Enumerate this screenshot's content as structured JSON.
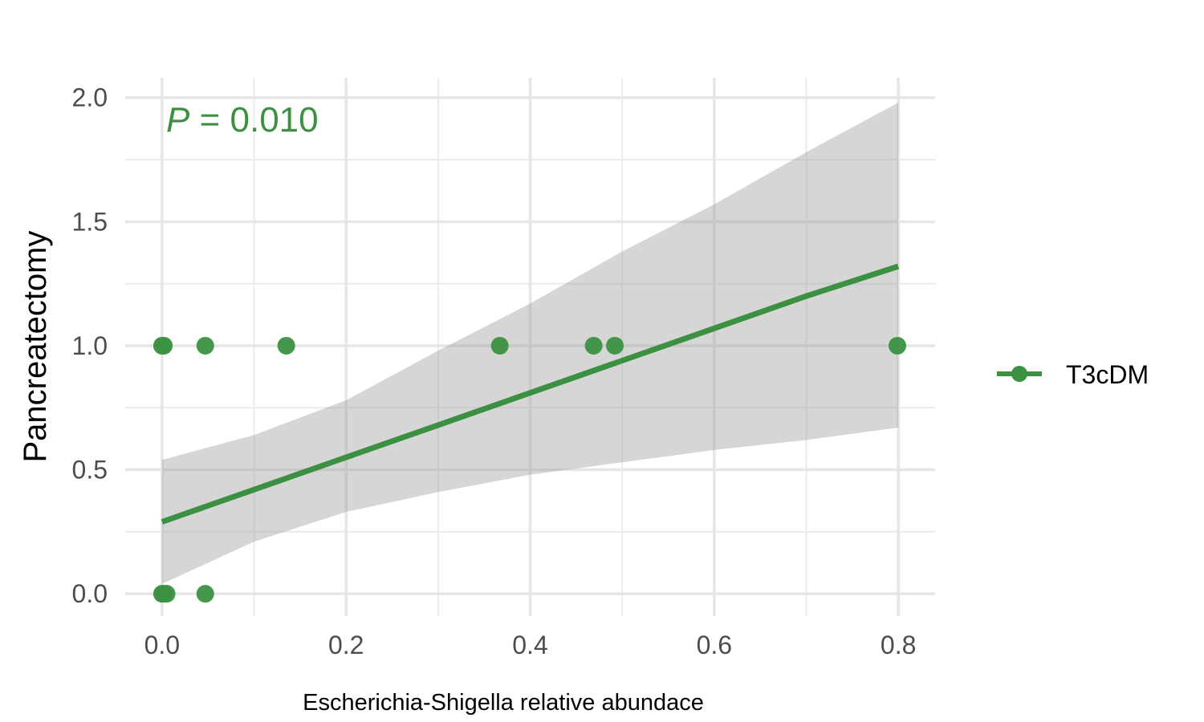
{
  "chart_data": {
    "type": "scatter",
    "title": "",
    "xlabel": "Escherichia-Shigella relative abundace",
    "ylabel": "Pancreatectomy",
    "xlim": [
      -0.04,
      0.84
    ],
    "ylim": [
      -0.09,
      2.08
    ],
    "x_ticks": [
      0.0,
      0.2,
      0.4,
      0.6,
      0.8
    ],
    "x_tick_labels": [
      "0.0",
      "0.2",
      "0.4",
      "0.6",
      "0.8"
    ],
    "y_ticks": [
      0.0,
      0.5,
      1.0,
      1.5,
      2.0
    ],
    "y_tick_labels": [
      "0.0",
      "0.5",
      "1.0",
      "1.5",
      "2.0"
    ],
    "grid": true,
    "legend_position": "right",
    "annotation": {
      "italic_part": "P",
      "rest": " = 0.010"
    },
    "series": [
      {
        "name": "T3cDM",
        "color": "#3b9141",
        "points": [
          {
            "x": 0.0,
            "y": 1
          },
          {
            "x": 0.002,
            "y": 1
          },
          {
            "x": 0.047,
            "y": 1
          },
          {
            "x": 0.135,
            "y": 1
          },
          {
            "x": 0.367,
            "y": 1
          },
          {
            "x": 0.469,
            "y": 1
          },
          {
            "x": 0.492,
            "y": 1
          },
          {
            "x": 0.799,
            "y": 1
          },
          {
            "x": 0.0,
            "y": 0
          },
          {
            "x": 0.002,
            "y": 0
          },
          {
            "x": 0.005,
            "y": 0
          },
          {
            "x": 0.047,
            "y": 0
          }
        ],
        "fit": {
          "x": [
            0.0,
            0.1,
            0.2,
            0.3,
            0.4,
            0.5,
            0.6,
            0.7,
            0.8
          ],
          "y": [
            0.29,
            0.42,
            0.55,
            0.68,
            0.81,
            0.94,
            1.07,
            1.2,
            1.32
          ],
          "ci_lower": [
            0.04,
            0.21,
            0.33,
            0.41,
            0.48,
            0.53,
            0.58,
            0.62,
            0.67
          ],
          "ci_upper": [
            0.54,
            0.64,
            0.78,
            0.98,
            1.17,
            1.38,
            1.57,
            1.78,
            1.98
          ]
        }
      }
    ]
  }
}
